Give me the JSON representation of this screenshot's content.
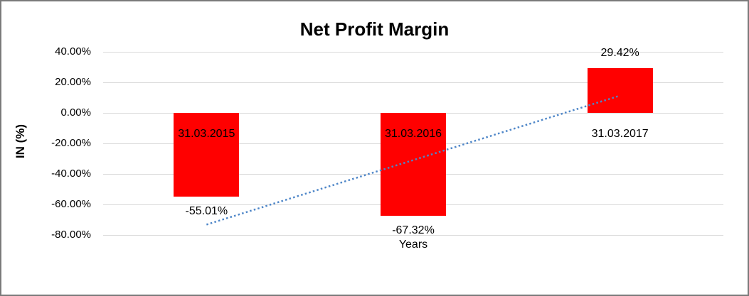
{
  "chart": {
    "title": "Net Profit Margin",
    "y_axis_title": "IN (%)",
    "x_axis_title": "Years"
  },
  "chart_data": {
    "type": "bar",
    "title": "Net Profit Margin",
    "xlabel": "Years",
    "ylabel": "IN (%)",
    "categories": [
      "31.03.2015",
      "31.03.2016",
      "31.03.2017"
    ],
    "values": [
      -55.01,
      -67.32,
      29.42
    ],
    "value_labels": [
      "-55.01%",
      "-67.32%",
      "29.42%"
    ],
    "y_ticks": [
      {
        "value": 40,
        "label": "40.00%"
      },
      {
        "value": 20,
        "label": "20.00%"
      },
      {
        "value": 0,
        "label": "0.00%"
      },
      {
        "value": -20,
        "label": "-20.00%"
      },
      {
        "value": -40,
        "label": "-40.00%"
      },
      {
        "value": -60,
        "label": "-60.00%"
      },
      {
        "value": -80,
        "label": "-80.00%"
      }
    ],
    "ylim": [
      -80,
      40
    ],
    "grid": "horizontal-only",
    "legend": "none",
    "bar_color": "#FF0000",
    "text_color": "#000000",
    "gridline_color": "#D9D9D9",
    "trendline": {
      "style": "dotted",
      "color": "#4E86C8",
      "start_pct": -73.2,
      "end_pct": 11.3
    }
  }
}
